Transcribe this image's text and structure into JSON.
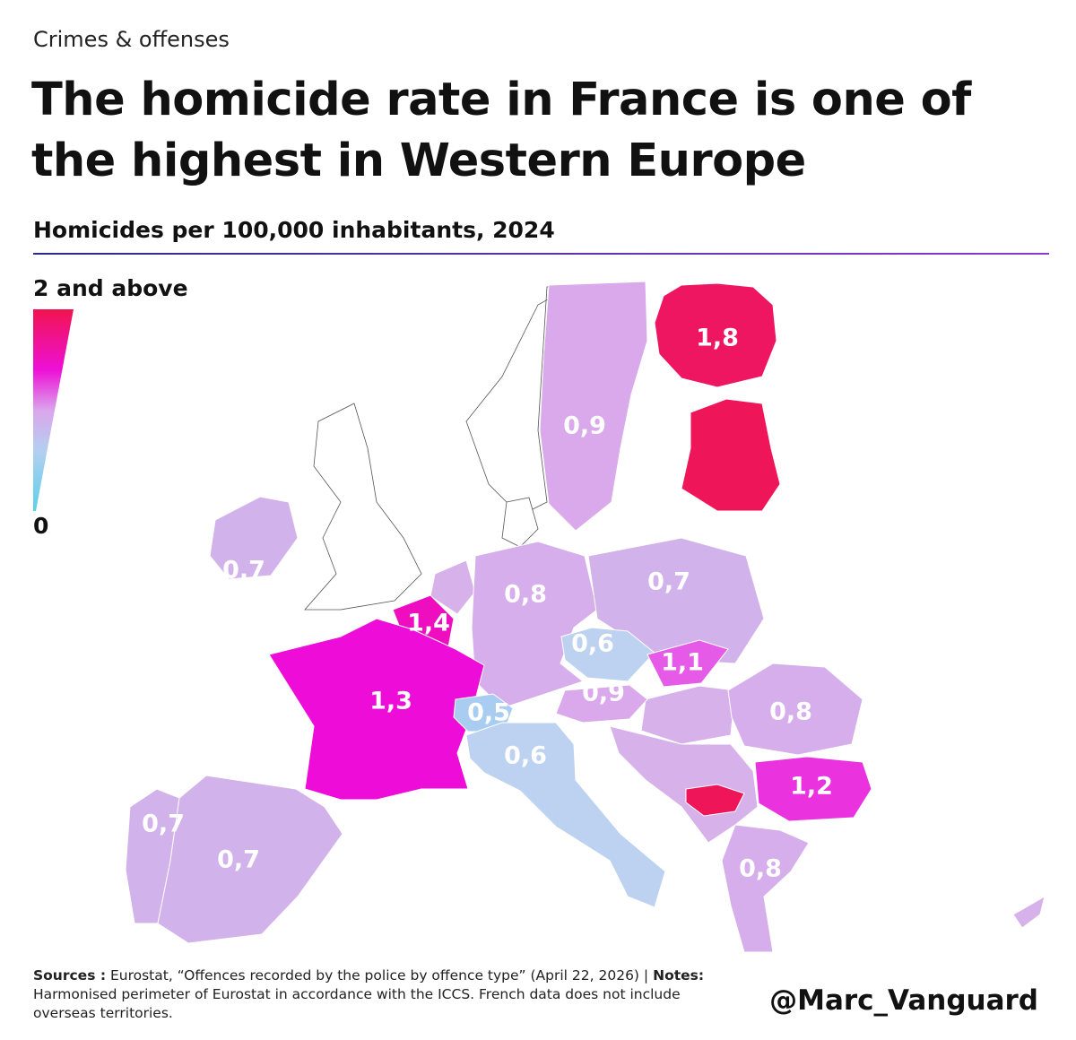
{
  "header": {
    "kicker": "Crimes & offenses",
    "title": "The homicide rate in France is one of the highest in Western Europe",
    "subtitle": "Homicides per 100,000 inhabitants, 2024"
  },
  "chart_data": {
    "type": "choropleth",
    "values": [
      1.8,
      0.9,
      0.7,
      0.8,
      0.7,
      1.4,
      0.6,
      1.1,
      1.3,
      0.9,
      0.8,
      0.5,
      0.6,
      1.2,
      0.7,
      0.7,
      0.8
    ],
    "value_labels": [
      "1,8",
      "0,9",
      "0,7",
      "0,8",
      "0,7",
      "1,4",
      "0,6",
      "1,1",
      "1,3",
      "0,9",
      "0,8",
      "0,5",
      "0,6",
      "1,2",
      "0,7",
      "0,7",
      "0,8"
    ],
    "clim": [
      0,
      2
    ],
    "cticks": [
      {
        "value": 2,
        "label": "2 and above"
      },
      0
    ]
  },
  "footer": {
    "sources_label": "Sources :",
    "sources_text": "Eurostat, “Offences recorded by the police by offence type” (April 22, 2026)",
    "separator": "|",
    "notes_label": "Notes:",
    "notes_text": "Harmonised perimeter of Eurostat in accordance with the ICCS. French data does not include overseas territories.",
    "handle": "@Marc_Vanguard"
  }
}
